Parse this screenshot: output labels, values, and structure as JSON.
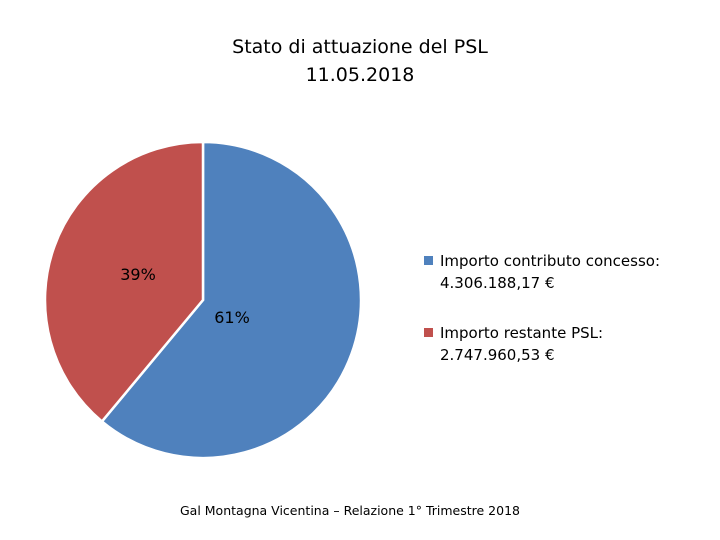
{
  "chart_data": {
    "type": "pie",
    "title": "Stato di attuazione del PSL",
    "subtitle": "11.05.2018",
    "slices": [
      {
        "label_line1": "Importo contributo concesso:",
        "label_line2": "4.306.188,17 €",
        "value": 4306188.17,
        "percent_label": "61%",
        "color": "#4F81BD"
      },
      {
        "label_line1": "Importo restante PSL:",
        "label_line2": "2.747.960,53 €",
        "value": 2747960.53,
        "percent_label": "39%",
        "color": "#C0504D"
      }
    ],
    "legend_position": "right"
  },
  "footer": {
    "text": "Gal Montagna Vicentina – Relazione 1° Trimestre 2018"
  }
}
